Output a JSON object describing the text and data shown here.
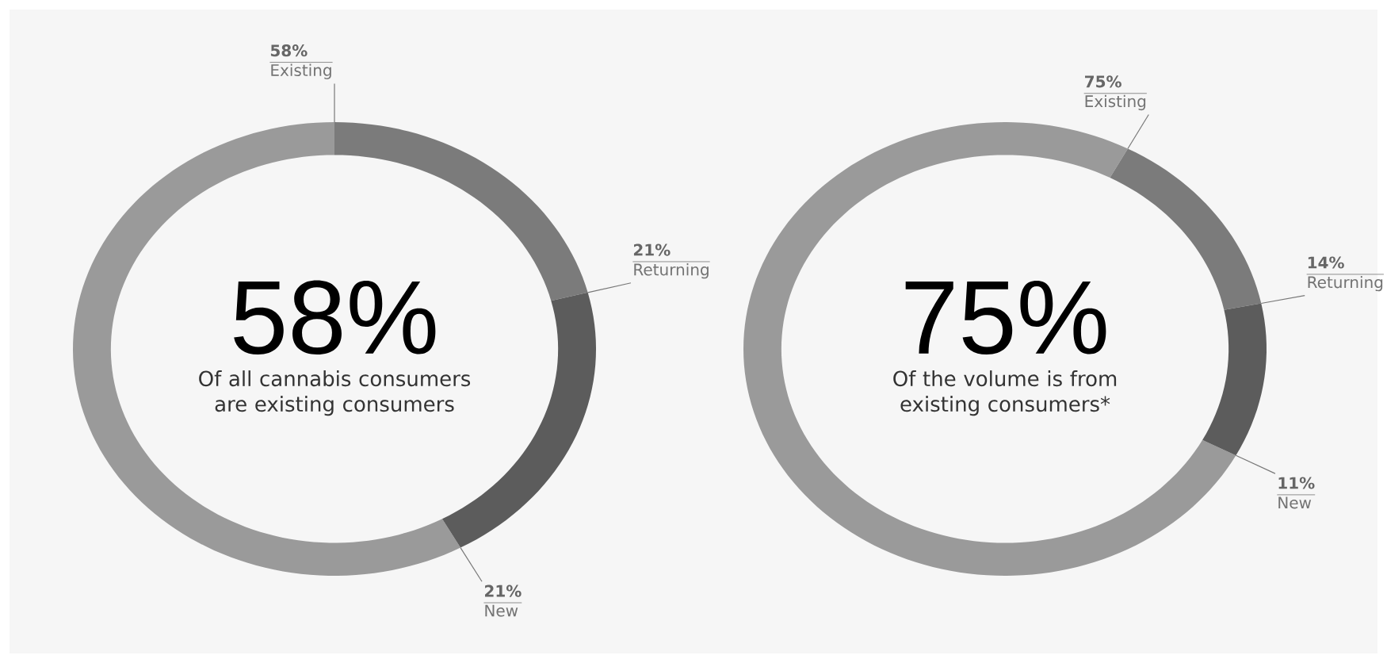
{
  "chart_data": [
    {
      "type": "donut",
      "title": "58%",
      "subtitle": "Of all cannabis consumers are existing consumers",
      "categories": [
        "Existing",
        "Returning",
        "New"
      ],
      "values": [
        58,
        21,
        21
      ],
      "value_labels": [
        "58%",
        "21%",
        "21%"
      ],
      "colors": [
        "#9a9a9a",
        "#7b7b7b",
        "#5c5c5c"
      ]
    },
    {
      "type": "donut",
      "title": "75%",
      "subtitle": "Of the volume is from existing consumers*",
      "categories": [
        "Existing",
        "Returning",
        "New"
      ],
      "values": [
        75,
        14,
        11
      ],
      "value_labels": [
        "75%",
        "14%",
        "11%"
      ],
      "colors": [
        "#9a9a9a",
        "#7b7b7b",
        "#5c5c5c"
      ]
    }
  ]
}
